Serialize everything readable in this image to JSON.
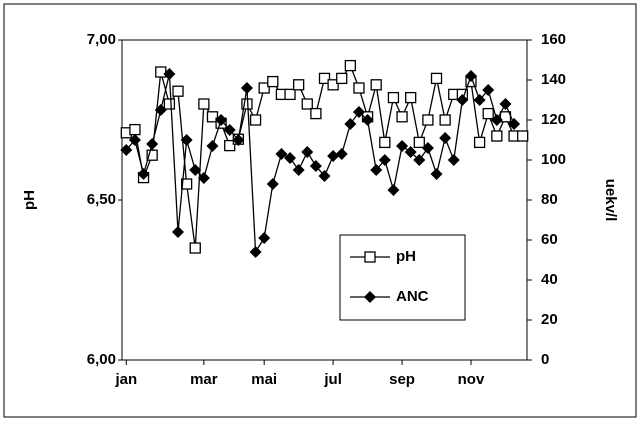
{
  "chart_data": {
    "type": "line",
    "categories": [
      "jan",
      null,
      null,
      null,
      null,
      null,
      null,
      null,
      null,
      "mar",
      null,
      null,
      null,
      null,
      null,
      null,
      "mai",
      null,
      null,
      null,
      null,
      null,
      null,
      null,
      "jul",
      null,
      null,
      null,
      null,
      null,
      null,
      null,
      "sep",
      null,
      null,
      null,
      null,
      null,
      null,
      null,
      "nov",
      null,
      null,
      null,
      null,
      null,
      null
    ],
    "y_label": "pH",
    "y2_label": "uekv/l",
    "ylim": [
      6,
      7
    ],
    "yticks": [
      {
        "value": 6,
        "label": "6,00"
      },
      {
        "value": 6.5,
        "label": "6,50"
      },
      {
        "value": 7,
        "label": "7,00"
      }
    ],
    "y2lim": [
      0,
      160
    ],
    "y2ticks": [
      0,
      20,
      40,
      60,
      80,
      100,
      120,
      140,
      160
    ],
    "legend": "lower right",
    "series": [
      {
        "name": "pH",
        "color": "#000000",
        "marker": "square",
        "values": [
          6.71,
          6.72,
          6.57,
          6.64,
          6.9,
          6.8,
          6.84,
          6.55,
          6.35,
          6.8,
          6.76,
          6.74,
          6.67,
          6.69,
          6.8,
          6.75,
          6.85,
          6.87,
          6.83,
          6.83,
          6.86,
          6.8,
          6.77,
          6.88,
          6.86,
          6.88,
          6.92,
          6.85,
          6.76,
          6.86,
          6.68,
          6.82,
          6.76,
          6.82,
          6.68,
          6.75,
          6.88,
          6.75,
          6.83,
          6.83,
          6.87,
          6.68,
          6.77,
          6.7,
          6.76,
          6.7,
          6.7
        ]
      },
      {
        "name": "ANC",
        "color": "#000000",
        "marker": "diamond",
        "axis": "y2",
        "values": [
          105,
          110,
          93,
          108,
          125,
          143,
          64,
          110,
          95,
          91,
          107,
          120,
          115,
          110,
          136,
          54,
          61,
          88,
          103,
          101,
          95,
          104,
          97,
          92,
          102,
          103,
          118,
          124,
          120,
          95,
          100,
          85,
          107,
          104,
          100,
          106,
          93,
          111,
          100,
          130,
          142,
          130,
          135,
          120,
          128,
          118,
          null
        ]
      }
    ]
  }
}
